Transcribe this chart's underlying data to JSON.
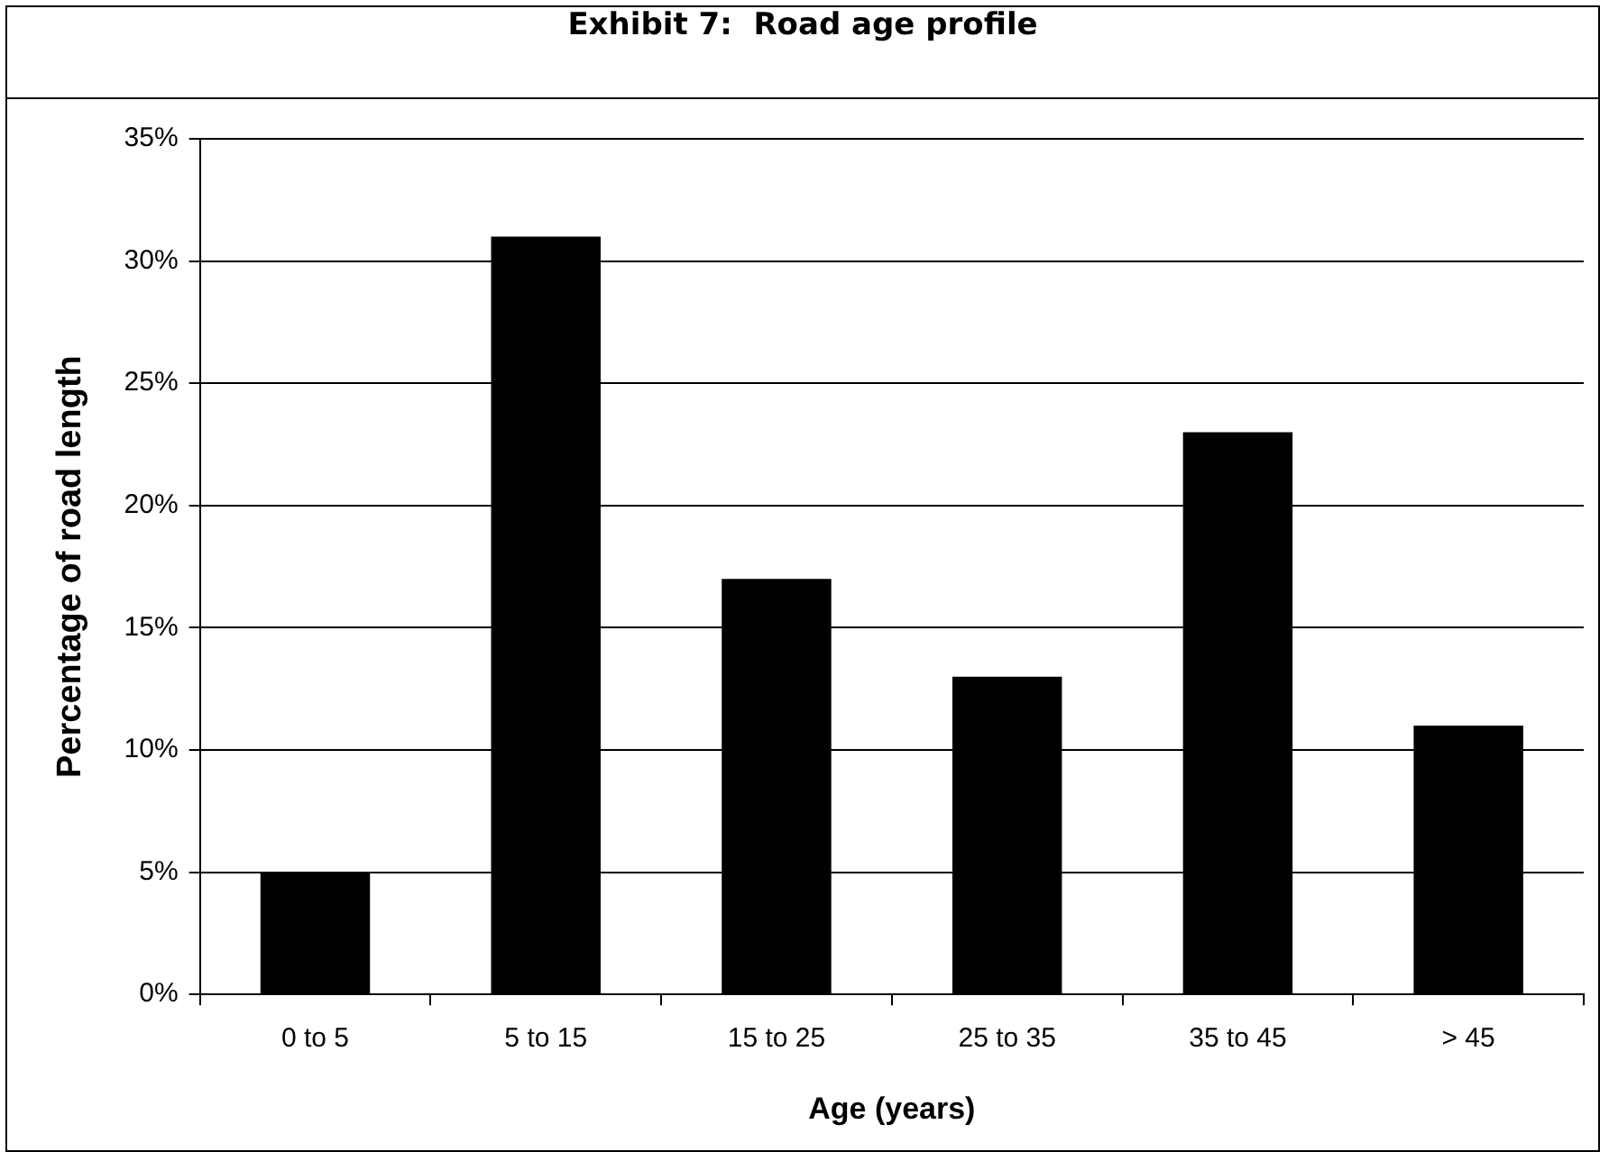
{
  "chart_data": {
    "type": "bar",
    "title": "Exhibit 7:  Road age profile",
    "xlabel": "Age (years)",
    "ylabel": "Percentage of road length",
    "categories": [
      "0 to 5",
      "5 to 15",
      "15 to 25",
      "25 to 35",
      "35 to 45",
      "> 45"
    ],
    "values": [
      5,
      31,
      17,
      13,
      23,
      11
    ],
    "color": "#000000",
    "ylim": [
      0,
      35
    ],
    "yticks": [
      {
        "value": 0,
        "label": "0%"
      },
      {
        "value": 5,
        "label": "5%"
      },
      {
        "value": 10,
        "label": "10%"
      },
      {
        "value": 15,
        "label": "15%"
      },
      {
        "value": 20,
        "label": "20%"
      },
      {
        "value": 25,
        "label": "25%"
      },
      {
        "value": 30,
        "label": "30%"
      },
      {
        "value": 35,
        "label": "35%"
      }
    ],
    "grid": "y",
    "legend": false
  }
}
